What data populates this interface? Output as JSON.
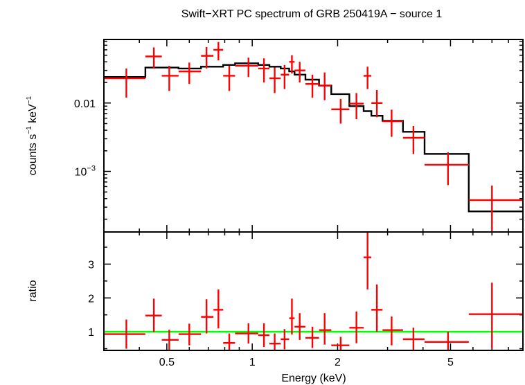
{
  "chart_data": [
    {
      "type": "line",
      "panel": "spectrum",
      "title": "Swift−XRT PC spectrum of GRB 250419A − source 1",
      "xlabel": "",
      "ylabel_main": "counts s",
      "ylabel_sup1": "−1",
      "ylabel_mid": " keV",
      "ylabel_sup2": "−1",
      "x_scale": "log",
      "y_scale": "log",
      "xlim": [
        0.3,
        9.0
      ],
      "ylim": [
        0.00013,
        0.085
      ],
      "y_tick_labels": [
        {
          "value": 0.01,
          "base": "0.01",
          "sup": ""
        },
        {
          "value": 0.001,
          "base": "10",
          "sup": "−3"
        }
      ],
      "data_color": "#ff0000",
      "model_color": "#000000",
      "series": [
        {
          "kind": "data",
          "points": [
            {
              "x": 0.36,
              "xlo": 0.3,
              "xhi": 0.42,
              "y": 0.023,
              "ylo": 0.012,
              "yhi": 0.032
            },
            {
              "x": 0.45,
              "xlo": 0.42,
              "xhi": 0.48,
              "y": 0.048,
              "ylo": 0.032,
              "yhi": 0.065
            },
            {
              "x": 0.51,
              "xlo": 0.48,
              "xhi": 0.55,
              "y": 0.025,
              "ylo": 0.015,
              "yhi": 0.035
            },
            {
              "x": 0.6,
              "xlo": 0.55,
              "xhi": 0.66,
              "y": 0.029,
              "ylo": 0.019,
              "yhi": 0.039
            },
            {
              "x": 0.69,
              "xlo": 0.66,
              "xhi": 0.73,
              "y": 0.049,
              "ylo": 0.032,
              "yhi": 0.066
            },
            {
              "x": 0.76,
              "xlo": 0.73,
              "xhi": 0.79,
              "y": 0.06,
              "ylo": 0.042,
              "yhi": 0.078
            },
            {
              "x": 0.83,
              "xlo": 0.79,
              "xhi": 0.87,
              "y": 0.025,
              "ylo": 0.015,
              "yhi": 0.035
            },
            {
              "x": 0.97,
              "xlo": 0.87,
              "xhi": 1.05,
              "y": 0.035,
              "ylo": 0.024,
              "yhi": 0.046
            },
            {
              "x": 1.1,
              "xlo": 1.05,
              "xhi": 1.15,
              "y": 0.032,
              "ylo": 0.02,
              "yhi": 0.045
            },
            {
              "x": 1.2,
              "xlo": 1.15,
              "xhi": 1.26,
              "y": 0.023,
              "ylo": 0.014,
              "yhi": 0.033
            },
            {
              "x": 1.3,
              "xlo": 1.26,
              "xhi": 1.35,
              "y": 0.026,
              "ylo": 0.016,
              "yhi": 0.036
            },
            {
              "x": 1.38,
              "xlo": 1.35,
              "xhi": 1.41,
              "y": 0.04,
              "ylo": 0.027,
              "yhi": 0.05
            },
            {
              "x": 1.47,
              "xlo": 1.41,
              "xhi": 1.54,
              "y": 0.03,
              "ylo": 0.02,
              "yhi": 0.04
            },
            {
              "x": 1.63,
              "xlo": 1.54,
              "xhi": 1.72,
              "y": 0.019,
              "ylo": 0.012,
              "yhi": 0.026
            },
            {
              "x": 1.8,
              "xlo": 1.72,
              "xhi": 1.9,
              "y": 0.018,
              "ylo": 0.011,
              "yhi": 0.028
            },
            {
              "x": 2.05,
              "xlo": 1.9,
              "xhi": 2.2,
              "y": 0.0081,
              "ylo": 0.005,
              "yhi": 0.0115
            },
            {
              "x": 2.33,
              "xlo": 2.2,
              "xhi": 2.47,
              "y": 0.0098,
              "ylo": 0.0058,
              "yhi": 0.014
            },
            {
              "x": 2.55,
              "xlo": 2.47,
              "xhi": 2.63,
              "y": 0.025,
              "ylo": 0.016,
              "yhi": 0.034
            },
            {
              "x": 2.75,
              "xlo": 2.63,
              "xhi": 2.88,
              "y": 0.01,
              "ylo": 0.0062,
              "yhi": 0.0155
            },
            {
              "x": 3.1,
              "xlo": 2.88,
              "xhi": 3.4,
              "y": 0.0054,
              "ylo": 0.0032,
              "yhi": 0.008
            },
            {
              "x": 3.7,
              "xlo": 3.4,
              "xhi": 4.05,
              "y": 0.0031,
              "ylo": 0.0018,
              "yhi": 0.0046
            },
            {
              "x": 4.9,
              "xlo": 4.05,
              "xhi": 5.8,
              "y": 0.00125,
              "ylo": 0.00063,
              "yhi": 0.0019
            },
            {
              "x": 7.0,
              "xlo": 5.8,
              "xhi": 9.0,
              "y": 0.00038,
              "ylo": 0.00013,
              "yhi": 0.00062
            }
          ]
        },
        {
          "kind": "model",
          "steps": [
            {
              "xlo": 0.3,
              "xhi": 0.42,
              "y": 0.024
            },
            {
              "xlo": 0.42,
              "xhi": 0.55,
              "y": 0.033
            },
            {
              "xlo": 0.55,
              "xhi": 0.66,
              "y": 0.032
            },
            {
              "xlo": 0.66,
              "xhi": 0.79,
              "y": 0.034
            },
            {
              "xlo": 0.79,
              "xhi": 0.87,
              "y": 0.036
            },
            {
              "xlo": 0.87,
              "xhi": 1.05,
              "y": 0.038
            },
            {
              "xlo": 1.05,
              "xhi": 1.15,
              "y": 0.036
            },
            {
              "xlo": 1.15,
              "xhi": 1.26,
              "y": 0.034
            },
            {
              "xlo": 1.26,
              "xhi": 1.35,
              "y": 0.032
            },
            {
              "xlo": 1.35,
              "xhi": 1.41,
              "y": 0.029
            },
            {
              "xlo": 1.41,
              "xhi": 1.54,
              "y": 0.026
            },
            {
              "xlo": 1.54,
              "xhi": 1.72,
              "y": 0.022
            },
            {
              "xlo": 1.72,
              "xhi": 1.9,
              "y": 0.018
            },
            {
              "xlo": 1.9,
              "xhi": 2.2,
              "y": 0.0135
            },
            {
              "xlo": 2.2,
              "xhi": 2.47,
              "y": 0.009
            },
            {
              "xlo": 2.47,
              "xhi": 2.63,
              "y": 0.0076
            },
            {
              "xlo": 2.63,
              "xhi": 2.88,
              "y": 0.0065
            },
            {
              "xlo": 2.88,
              "xhi": 3.4,
              "y": 0.0055
            },
            {
              "xlo": 3.4,
              "xhi": 4.05,
              "y": 0.0038
            },
            {
              "xlo": 4.05,
              "xhi": 5.8,
              "y": 0.0018
            },
            {
              "xlo": 5.8,
              "xhi": 9.0,
              "y": 0.00026
            }
          ]
        }
      ]
    },
    {
      "type": "line",
      "panel": "ratio",
      "xlabel": "Energy (keV)",
      "ylabel": "ratio",
      "x_scale": "log",
      "y_scale": "linear",
      "xlim": [
        0.3,
        9.0
      ],
      "ylim": [
        0.45,
        3.95
      ],
      "x_tick_labels": [
        {
          "value": 0.5,
          "label": "0.5"
        },
        {
          "value": 1,
          "label": "1"
        },
        {
          "value": 2,
          "label": "2"
        },
        {
          "value": 5,
          "label": "5"
        }
      ],
      "y_tick_labels": [
        {
          "value": 1,
          "label": "1"
        },
        {
          "value": 2,
          "label": "2"
        },
        {
          "value": 3,
          "label": "3"
        }
      ],
      "reference_line": {
        "y": 1.0,
        "color": "#00ff00"
      },
      "data_color": "#ff0000",
      "points": [
        {
          "x": 0.36,
          "xlo": 0.3,
          "xhi": 0.42,
          "y": 0.93,
          "ylo": 0.5,
          "yhi": 1.36
        },
        {
          "x": 0.45,
          "xlo": 0.42,
          "xhi": 0.48,
          "y": 1.48,
          "ylo": 0.99,
          "yhi": 1.98
        },
        {
          "x": 0.51,
          "xlo": 0.48,
          "xhi": 0.55,
          "y": 0.76,
          "ylo": 0.46,
          "yhi": 1.06
        },
        {
          "x": 0.6,
          "xlo": 0.55,
          "xhi": 0.66,
          "y": 0.93,
          "ylo": 0.6,
          "yhi": 1.24
        },
        {
          "x": 0.69,
          "xlo": 0.66,
          "xhi": 0.73,
          "y": 1.44,
          "ylo": 0.95,
          "yhi": 1.96
        },
        {
          "x": 0.76,
          "xlo": 0.73,
          "xhi": 0.79,
          "y": 1.65,
          "ylo": 1.1,
          "yhi": 2.25
        },
        {
          "x": 0.83,
          "xlo": 0.79,
          "xhi": 0.87,
          "y": 0.67,
          "ylo": 0.45,
          "yhi": 0.95
        },
        {
          "x": 0.97,
          "xlo": 0.87,
          "xhi": 1.05,
          "y": 0.95,
          "ylo": 0.65,
          "yhi": 1.25
        },
        {
          "x": 1.1,
          "xlo": 1.05,
          "xhi": 1.15,
          "y": 0.9,
          "ylo": 0.55,
          "yhi": 1.25
        },
        {
          "x": 1.2,
          "xlo": 1.15,
          "xhi": 1.26,
          "y": 0.65,
          "ylo": 0.45,
          "yhi": 0.95
        },
        {
          "x": 1.3,
          "xlo": 1.26,
          "xhi": 1.35,
          "y": 0.78,
          "ylo": 0.48,
          "yhi": 1.08
        },
        {
          "x": 1.38,
          "xlo": 1.35,
          "xhi": 1.41,
          "y": 1.4,
          "ylo": 0.92,
          "yhi": 1.98
        },
        {
          "x": 1.47,
          "xlo": 1.41,
          "xhi": 1.54,
          "y": 1.15,
          "ylo": 0.76,
          "yhi": 1.55
        },
        {
          "x": 1.63,
          "xlo": 1.54,
          "xhi": 1.72,
          "y": 0.82,
          "ylo": 0.52,
          "yhi": 1.15
        },
        {
          "x": 1.8,
          "xlo": 1.72,
          "xhi": 1.9,
          "y": 1.05,
          "ylo": 0.62,
          "yhi": 1.55
        },
        {
          "x": 2.05,
          "xlo": 1.9,
          "xhi": 2.2,
          "y": 0.6,
          "ylo": 0.45,
          "yhi": 0.85
        },
        {
          "x": 2.33,
          "xlo": 2.2,
          "xhi": 2.47,
          "y": 1.12,
          "ylo": 0.66,
          "yhi": 1.6
        },
        {
          "x": 2.55,
          "xlo": 2.47,
          "xhi": 2.63,
          "y": 3.2,
          "ylo": 2.25,
          "yhi": 3.95
        },
        {
          "x": 2.75,
          "xlo": 2.63,
          "xhi": 2.88,
          "y": 1.65,
          "ylo": 1.0,
          "yhi": 2.4
        },
        {
          "x": 3.1,
          "xlo": 2.88,
          "xhi": 3.4,
          "y": 1.05,
          "ylo": 0.6,
          "yhi": 1.45
        },
        {
          "x": 3.7,
          "xlo": 3.4,
          "xhi": 4.05,
          "y": 0.78,
          "ylo": 0.47,
          "yhi": 1.12
        },
        {
          "x": 4.9,
          "xlo": 4.05,
          "xhi": 5.8,
          "y": 0.7,
          "ylo": 0.45,
          "yhi": 1.0
        },
        {
          "x": 7.0,
          "xlo": 5.8,
          "xhi": 9.0,
          "y": 1.52,
          "ylo": 0.5,
          "yhi": 2.45
        }
      ]
    }
  ]
}
